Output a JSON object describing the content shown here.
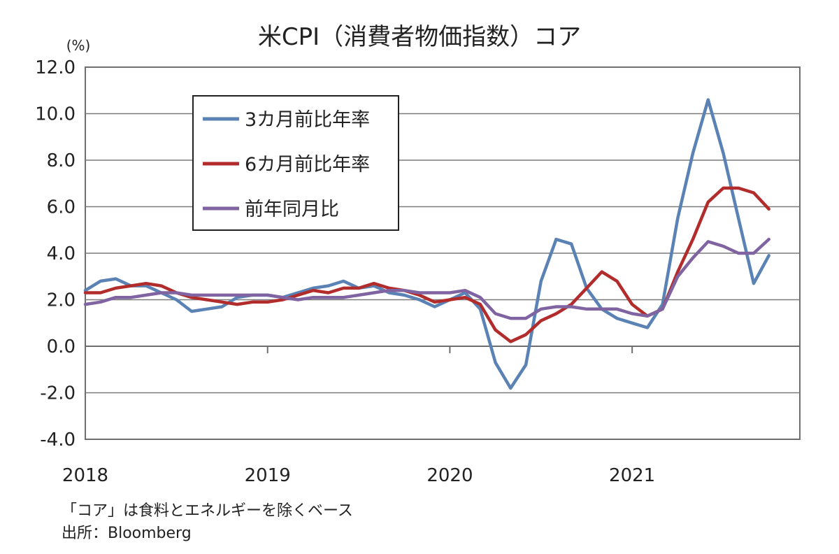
{
  "chart_data": {
    "type": "line",
    "title": "米CPI（消費者物価指数）コア",
    "unit": "(%)",
    "ylim": [
      -4.0,
      12.0
    ],
    "yticks": [
      "12.0",
      "10.0",
      "8.0",
      "6.0",
      "4.0",
      "2.0",
      "0.0",
      "-2.0",
      "-4.0"
    ],
    "xlim": [
      2018.0,
      2021.92
    ],
    "xticks": [
      "2018",
      "2019",
      "2020",
      "2021"
    ],
    "x_start": 2018.0,
    "x_step": 0.0833333,
    "series": [
      {
        "name": "3カ月前比年率",
        "color": "#5b82b5",
        "values": [
          2.4,
          2.8,
          2.9,
          2.6,
          2.6,
          2.3,
          2.0,
          1.5,
          1.6,
          1.7,
          2.1,
          2.2,
          2.2,
          2.1,
          2.3,
          2.5,
          2.6,
          2.8,
          2.5,
          2.6,
          2.3,
          2.2,
          2.0,
          1.7,
          2.0,
          2.3,
          1.6,
          -0.7,
          -1.8,
          -0.8,
          2.8,
          4.6,
          4.4,
          2.5,
          1.6,
          1.2,
          1.0,
          0.8,
          1.8,
          5.5,
          8.3,
          10.6,
          8.3,
          5.5,
          2.7,
          3.9
        ]
      },
      {
        "name": "6カ月前比年率",
        "color": "#b22c2c",
        "values": [
          2.3,
          2.3,
          2.5,
          2.6,
          2.7,
          2.6,
          2.3,
          2.1,
          2.0,
          1.9,
          1.8,
          1.9,
          1.9,
          2.0,
          2.2,
          2.4,
          2.3,
          2.5,
          2.5,
          2.7,
          2.5,
          2.4,
          2.2,
          1.9,
          2.0,
          2.1,
          1.8,
          0.7,
          0.2,
          0.5,
          1.1,
          1.4,
          1.8,
          2.5,
          3.2,
          2.8,
          1.8,
          1.3,
          1.6,
          3.2,
          4.6,
          6.2,
          6.8,
          6.8,
          6.6,
          5.9
        ]
      },
      {
        "name": "前年同月比",
        "color": "#8064a2",
        "values": [
          1.8,
          1.9,
          2.1,
          2.1,
          2.2,
          2.3,
          2.3,
          2.2,
          2.2,
          2.2,
          2.2,
          2.2,
          2.2,
          2.1,
          2.0,
          2.1,
          2.1,
          2.1,
          2.2,
          2.3,
          2.4,
          2.4,
          2.3,
          2.3,
          2.3,
          2.4,
          2.1,
          1.4,
          1.2,
          1.2,
          1.6,
          1.7,
          1.7,
          1.6,
          1.6,
          1.6,
          1.4,
          1.3,
          1.6,
          3.0,
          3.8,
          4.5,
          4.3,
          4.0,
          4.0,
          4.6
        ]
      }
    ],
    "legend_position": "top-left inside plot",
    "grid": true
  },
  "notes": {
    "line1": "「コア」は食料とエネルギーを除くベース",
    "line2": "出所：Bloomberg"
  }
}
